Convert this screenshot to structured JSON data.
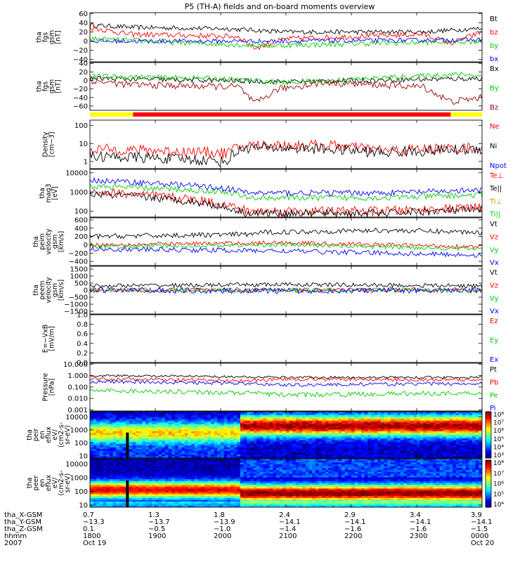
{
  "title": "P5 (TH-A) fields and on-board moments overview",
  "panels": [
    {
      "id": "fgs1",
      "ylabel": [
        "tha",
        "fgs",
        "gsm",
        "[nT]"
      ],
      "ticks": [
        "60",
        "40",
        "20",
        "0",
        "−20",
        "−40"
      ],
      "legend": [
        {
          "text": "Bt",
          "color": "#000000"
        },
        {
          "text": "bz",
          "color": "#ff0000"
        },
        {
          "text": "by",
          "color": "#00cc00"
        },
        {
          "text": "bx",
          "color": "#0000ff"
        }
      ]
    },
    {
      "id": "fgs2",
      "ylabel": [
        "tha",
        "fgs",
        "gsm",
        "[nT]"
      ],
      "ticks": [
        "40",
        "20",
        "0",
        "−20",
        "−40",
        "−60"
      ],
      "legend": [
        {
          "text": "Bx",
          "color": "#000000"
        },
        {
          "text": "By",
          "color": "#00cc00"
        },
        {
          "text": "Bz",
          "color": "#990000"
        }
      ]
    },
    {
      "id": "dens",
      "ylabel": [
        "Density",
        "[cm−3]"
      ],
      "ticks": [
        "100",
        "10",
        "1"
      ],
      "legend": [
        {
          "text": "Ne",
          "color": "#ff0000"
        },
        {
          "text": "Ni",
          "color": "#000000"
        },
        {
          "text": "Npot",
          "color": "#0000ff"
        }
      ]
    },
    {
      "id": "temp",
      "ylabel": [
        "tha",
        "mag3",
        "[eV]"
      ],
      "ticks": [
        "10000",
        "1000",
        "100"
      ],
      "legend": [
        {
          "text": "Te⊥",
          "color": "#ff0000"
        },
        {
          "text": "Te||",
          "color": "#000000"
        },
        {
          "text": "Ti⊥",
          "color": "#cc9900"
        },
        {
          "text": "Ti||",
          "color": "#00cc00"
        }
      ]
    },
    {
      "id": "vi",
      "ylabel": [
        "tha",
        "peim",
        "velocity",
        "gsm",
        "[km/s]"
      ],
      "ticks": [
        "600",
        "400",
        "200",
        "0",
        "−200",
        "−400"
      ],
      "legend": [
        {
          "text": "Vt",
          "color": "#000000"
        },
        {
          "text": "Vz",
          "color": "#ff0000"
        },
        {
          "text": "Vy",
          "color": "#00cc00"
        },
        {
          "text": "Vx",
          "color": "#0000ff"
        }
      ]
    },
    {
      "id": "ve",
      "ylabel": [
        "tha",
        "peem",
        "velocity",
        "gsm",
        "[km/s]"
      ],
      "ticks": [
        "1500",
        "1000",
        "500",
        "0",
        "−500",
        "−1000",
        "−1500"
      ],
      "legend": [
        {
          "text": "Vt",
          "color": "#000000"
        },
        {
          "text": "Vz",
          "color": "#ff0000"
        },
        {
          "text": "Vy",
          "color": "#00cc00"
        },
        {
          "text": "Vx",
          "color": "#0000ff"
        }
      ]
    },
    {
      "id": "efield",
      "ylabel": [
        "E=−VxB",
        "[mV/m]"
      ],
      "ticks": [
        "1.0",
        "0.8",
        "0.6",
        "0.4",
        "0.2",
        "0.0"
      ],
      "legend": [
        {
          "text": "Ez",
          "color": "#ff0000"
        },
        {
          "text": "Ey",
          "color": "#00cc00"
        },
        {
          "text": "Ex",
          "color": "#0000ff"
        }
      ]
    },
    {
      "id": "press",
      "ylabel": [
        "Pressure",
        "[nPa]"
      ],
      "ticks": [
        "10.000",
        "1.000",
        "0.100",
        "0.010",
        "0.001"
      ],
      "legend": [
        {
          "text": "Pt",
          "color": "#000000"
        },
        {
          "text": "Pb",
          "color": "#ff0000"
        },
        {
          "text": "Pe",
          "color": "#00cc00"
        },
        {
          "text": "Pi",
          "color": "#0000ff"
        }
      ]
    },
    {
      "id": "ispec",
      "ylabel": [
        "tha",
        "peir",
        "en",
        "eflux",
        "eV/",
        "(cm2-s-",
        "sr-eV)"
      ],
      "ticks": [
        "10000",
        "1000",
        "100",
        "10"
      ],
      "colorbar": [
        "10⁸",
        "10⁷",
        "10⁶",
        "10⁵",
        "10⁴",
        "10³"
      ]
    },
    {
      "id": "espec",
      "ylabel": [
        "tha",
        "peer",
        "en",
        "eflux",
        "eV/",
        "(cm2-s-",
        "sr-eV)"
      ],
      "ticks": [
        "10000",
        "1000",
        "100",
        "10"
      ],
      "colorbar": [
        "10⁸",
        "10⁷",
        "10⁶",
        "10⁵",
        "10⁴"
      ]
    }
  ],
  "xaxis": {
    "row_labels": [
      "tha_X-GSM",
      "tha_Y-GSM",
      "tha_Z-GSM",
      "hhmm",
      "2007"
    ],
    "columns": [
      {
        "vals": [
          "0.7",
          "−13.3",
          "0.1",
          "1800",
          "Oct 19"
        ]
      },
      {
        "vals": [
          "1.3",
          "−13.7",
          "−0.5",
          "1900",
          ""
        ]
      },
      {
        "vals": [
          "1.8",
          "−13.9",
          "−1.0",
          "2000",
          ""
        ]
      },
      {
        "vals": [
          "2.4",
          "−14.1",
          "−1.4",
          "2100",
          ""
        ]
      },
      {
        "vals": [
          "2.9",
          "−14.1",
          "−1.6",
          "2200",
          ""
        ]
      },
      {
        "vals": [
          "3.4",
          "−14.1",
          "−1.6",
          "2300",
          ""
        ]
      },
      {
        "vals": [
          "3.9",
          "−14.1",
          "−1.5",
          "0000",
          "Oct 20"
        ]
      }
    ]
  },
  "mode_bar": [
    {
      "start": 0.0,
      "end": 0.11,
      "color": "#ffff00"
    },
    {
      "start": 0.11,
      "end": 0.92,
      "color": "#ff0000"
    },
    {
      "start": 0.92,
      "end": 1.0,
      "color": "#ffff00"
    }
  ],
  "chart_data": {
    "type": "line",
    "title": "P5 (TH-A) fields and on-board moments overview",
    "x_range": [
      "2007-10-19 18:00",
      "2007-10-20 00:00"
    ],
    "x_ticks": [
      "1800",
      "1900",
      "2000",
      "2100",
      "2200",
      "2300",
      "0000"
    ],
    "series": [
      {
        "panel": "fgs1",
        "name": "Bt",
        "color": "#000000",
        "keyframes": [
          [
            0.0,
            35
          ],
          [
            0.11,
            30
          ],
          [
            0.35,
            27
          ],
          [
            0.5,
            20
          ],
          [
            0.85,
            20
          ],
          [
            1.0,
            28
          ]
        ],
        "noise": 5
      },
      {
        "panel": "fgs1",
        "name": "bz",
        "color": "#ff0000",
        "keyframes": [
          [
            0.0,
            30
          ],
          [
            0.1,
            15
          ],
          [
            0.38,
            10
          ],
          [
            0.42,
            -15
          ],
          [
            0.5,
            5
          ],
          [
            0.85,
            15
          ],
          [
            0.92,
            -5
          ],
          [
            1.0,
            20
          ]
        ],
        "noise": 6
      },
      {
        "panel": "fgs1",
        "name": "by",
        "color": "#00cc00",
        "keyframes": [
          [
            0.0,
            5
          ],
          [
            0.2,
            -2
          ],
          [
            0.45,
            -10
          ],
          [
            0.7,
            -5
          ],
          [
            1.0,
            0
          ]
        ],
        "noise": 6
      },
      {
        "panel": "fgs1",
        "name": "bx",
        "color": "#0000ff",
        "keyframes": [
          [
            0.0,
            0
          ],
          [
            0.5,
            0
          ],
          [
            1.0,
            3
          ]
        ],
        "noise": 5
      },
      {
        "panel": "fgs2",
        "name": "Bx",
        "color": "#000000",
        "keyframes": [
          [
            0.0,
            5
          ],
          [
            0.5,
            -3
          ],
          [
            1.0,
            5
          ]
        ],
        "noise": 6
      },
      {
        "panel": "fgs2",
        "name": "By",
        "color": "#00cc00",
        "keyframes": [
          [
            0.0,
            10
          ],
          [
            0.3,
            5
          ],
          [
            0.5,
            -5
          ],
          [
            0.95,
            15
          ],
          [
            1.0,
            10
          ]
        ],
        "noise": 6
      },
      {
        "panel": "fgs2",
        "name": "Bz",
        "color": "#990000",
        "keyframes": [
          [
            0.0,
            0
          ],
          [
            0.1,
            -10
          ],
          [
            0.38,
            -15
          ],
          [
            0.42,
            -55
          ],
          [
            0.48,
            -20
          ],
          [
            0.6,
            -5
          ],
          [
            0.85,
            -15
          ],
          [
            0.92,
            -50
          ],
          [
            1.0,
            -40
          ]
        ],
        "noise": 8
      },
      {
        "panel": "dens",
        "name": "Ne",
        "color": "#ff0000",
        "keyframes": [
          [
            0.0,
            5
          ],
          [
            0.35,
            3
          ],
          [
            0.4,
            8
          ],
          [
            0.6,
            8
          ],
          [
            0.75,
            4
          ],
          [
            1.0,
            6
          ]
        ],
        "noise": 0.3
      },
      {
        "panel": "dens",
        "name": "Ni",
        "color": "#000000",
        "keyframes": [
          [
            0.0,
            2
          ],
          [
            0.35,
            1
          ],
          [
            0.4,
            6
          ],
          [
            0.6,
            5
          ],
          [
            0.75,
            3
          ],
          [
            1.0,
            5
          ]
        ],
        "noise": 0.3
      },
      {
        "panel": "temp",
        "name": "Te⊥",
        "color": "#ff0000",
        "keyframes": [
          [
            0.0,
            1000
          ],
          [
            0.35,
            200
          ],
          [
            0.4,
            100
          ],
          [
            0.75,
            100
          ],
          [
            1.0,
            150
          ]
        ],
        "noise": 0.25
      },
      {
        "panel": "temp",
        "name": "Te||",
        "color": "#000000",
        "keyframes": [
          [
            0.0,
            800
          ],
          [
            0.35,
            150
          ],
          [
            0.4,
            80
          ],
          [
            0.75,
            80
          ],
          [
            1.0,
            120
          ]
        ],
        "noise": 0.2
      },
      {
        "panel": "temp",
        "name": "Ti||",
        "color": "#00cc00",
        "keyframes": [
          [
            0.0,
            2000
          ],
          [
            0.35,
            1000
          ],
          [
            0.4,
            500
          ],
          [
            0.75,
            500
          ],
          [
            1.0,
            700
          ]
        ],
        "noise": 0.15
      },
      {
        "panel": "temp",
        "name": "Ti⊥",
        "color": "#0000ff",
        "keyframes": [
          [
            0.0,
            4000
          ],
          [
            0.35,
            1500
          ],
          [
            0.4,
            900
          ],
          [
            0.75,
            900
          ],
          [
            1.0,
            1200
          ]
        ],
        "noise": 0.15
      },
      {
        "panel": "vi",
        "name": "Vt",
        "color": "#000000",
        "keyframes": [
          [
            0.0,
            200
          ],
          [
            0.4,
            250
          ],
          [
            0.45,
            300
          ],
          [
            0.75,
            350
          ],
          [
            1.0,
            300
          ]
        ],
        "noise": 60
      },
      {
        "panel": "vi",
        "name": "Vz",
        "color": "#ff0000",
        "keyframes": [
          [
            0.0,
            0
          ],
          [
            0.5,
            50
          ],
          [
            1.0,
            -50
          ]
        ],
        "noise": 50
      },
      {
        "panel": "vi",
        "name": "Vy",
        "color": "#00cc00",
        "keyframes": [
          [
            0.0,
            -50
          ],
          [
            0.5,
            0
          ],
          [
            1.0,
            -100
          ]
        ],
        "noise": 50
      },
      {
        "panel": "vi",
        "name": "Vx",
        "color": "#0000ff",
        "keyframes": [
          [
            0.0,
            -100
          ],
          [
            0.5,
            -150
          ],
          [
            1.0,
            -250
          ]
        ],
        "noise": 60
      },
      {
        "panel": "ve",
        "name": "Vt",
        "color": "#000000",
        "keyframes": [
          [
            0.0,
            300
          ],
          [
            0.5,
            400
          ],
          [
            1.0,
            300
          ]
        ],
        "noise": 150
      },
      {
        "panel": "ve",
        "name": "Vz",
        "color": "#ff0000",
        "keyframes": [
          [
            0.0,
            0
          ],
          [
            0.5,
            0
          ],
          [
            1.0,
            0
          ]
        ],
        "noise": 180
      },
      {
        "panel": "ve",
        "name": "Vy",
        "color": "#00cc00",
        "keyframes": [
          [
            0.0,
            0
          ],
          [
            0.5,
            0
          ],
          [
            1.0,
            0
          ]
        ],
        "noise": 160
      },
      {
        "panel": "ve",
        "name": "Vx",
        "color": "#0000ff",
        "keyframes": [
          [
            0.0,
            0
          ],
          [
            0.5,
            -50
          ],
          [
            1.0,
            0
          ]
        ],
        "noise": 200
      },
      {
        "panel": "press",
        "name": "Pt",
        "color": "#000000",
        "keyframes": [
          [
            0.0,
            1.0
          ],
          [
            0.5,
            0.7
          ],
          [
            1.0,
            0.7
          ]
        ],
        "noise": 0.1
      },
      {
        "panel": "press",
        "name": "Pb",
        "color": "#ff0000",
        "keyframes": [
          [
            0.0,
            0.5
          ],
          [
            0.4,
            0.35
          ],
          [
            0.5,
            0.5
          ],
          [
            1.0,
            0.4
          ]
        ],
        "noise": 0.15
      },
      {
        "panel": "press",
        "name": "Pi",
        "color": "#0000ff",
        "keyframes": [
          [
            0.0,
            0.3
          ],
          [
            0.4,
            0.2
          ],
          [
            0.5,
            0.15
          ],
          [
            1.0,
            0.2
          ]
        ],
        "noise": 0.15
      },
      {
        "panel": "press",
        "name": "Pe",
        "color": "#00cc00",
        "keyframes": [
          [
            0.0,
            0.05
          ],
          [
            0.4,
            0.03
          ],
          [
            0.5,
            0.02
          ],
          [
            1.0,
            0.03
          ]
        ],
        "noise": 0.2
      }
    ]
  }
}
